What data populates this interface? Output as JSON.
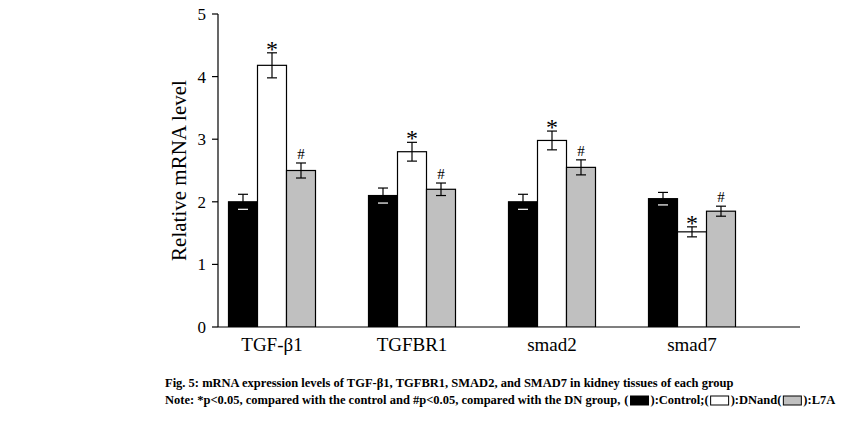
{
  "chart_data": {
    "type": "bar",
    "title": "Fig. 5: mRNA expression levels of TGF-β1, TGFBR1, SMAD2, and SMAD7 in kidney tissues of each group",
    "note": "Note: *p<0.05, compared with the control and #p<0.05, compared with the DN group,",
    "legend_brackets": [
      "(",
      "): "
    ],
    "legend_joiners": [
      "; ",
      " and "
    ],
    "y_label": "Relative mRNA level",
    "categories": [
      "TGF-β1",
      "TGFBR1",
      "smad2",
      "smad7"
    ],
    "series": [
      {
        "name": "Control",
        "color": "#000000",
        "values": [
          2.0,
          2.1,
          2.0,
          2.05
        ],
        "errors": [
          0.12,
          0.12,
          0.12,
          0.1
        ],
        "significance": [
          null,
          null,
          null,
          null
        ]
      },
      {
        "name": "DN",
        "color": "#ffffff",
        "values": [
          4.18,
          2.8,
          2.98,
          1.52
        ],
        "errors": [
          0.2,
          0.15,
          0.15,
          0.08
        ],
        "significance": [
          "*",
          "*",
          "*",
          "*"
        ]
      },
      {
        "name": "L7A",
        "color": "#c0c0c0",
        "values": [
          2.5,
          2.2,
          2.55,
          1.85
        ],
        "errors": [
          0.12,
          0.1,
          0.12,
          0.08
        ],
        "significance": [
          "#",
          "#",
          "#",
          "#"
        ]
      }
    ],
    "ylim": [
      0,
      5
    ],
    "yticks": [
      0,
      1,
      2,
      3,
      4,
      5
    ],
    "grid": false
  }
}
